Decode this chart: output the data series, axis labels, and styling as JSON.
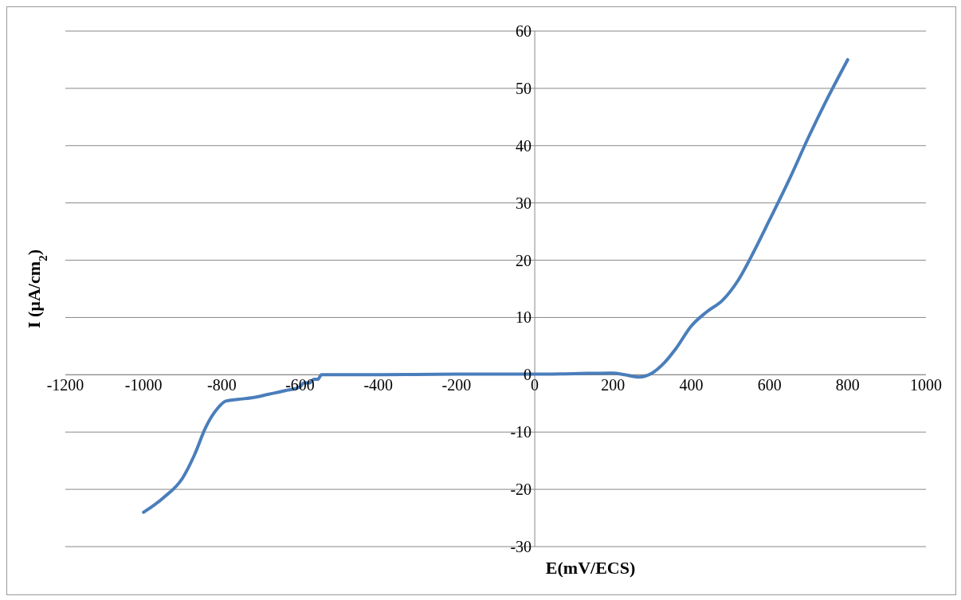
{
  "chart_data": {
    "type": "line",
    "xlabel": "E(mV/ECS)",
    "ylabel": "I (µA/cm$_{2}$)",
    "x": [
      -1000,
      -950,
      -900,
      -870,
      -840,
      -810,
      -790,
      -760,
      -720,
      -680,
      -640,
      -600,
      -590,
      -575,
      -565,
      -555,
      -545,
      -400,
      -200,
      0,
      100,
      200,
      230,
      265,
      300,
      330,
      360,
      400,
      440,
      480,
      520,
      560,
      600,
      650,
      700,
      750,
      800
    ],
    "series": [
      {
        "color": "#4a7ebb",
        "values": [
          -24,
          -21.5,
          -18,
          -14,
          -9,
          -5.8,
          -4.6,
          -4.3,
          -4,
          -3.4,
          -2.8,
          -2.1,
          -1.4,
          -1.4,
          -0.8,
          -0.8,
          0,
          0,
          0.1,
          0.1,
          0.2,
          0.3,
          0,
          -0.4,
          0.3,
          2,
          4.5,
          8.5,
          11,
          13,
          16.5,
          21.5,
          27,
          34,
          41.5,
          48.5,
          55
        ]
      }
    ],
    "xlim": [
      -1200,
      1000
    ],
    "xticks": [
      -1200,
      -1000,
      -800,
      -600,
      -400,
      -200,
      0,
      200,
      400,
      600,
      800,
      1000
    ],
    "ylim": [
      -30,
      60
    ],
    "yticks": [
      -30,
      -20,
      -10,
      0,
      10,
      20,
      30,
      40,
      50,
      60
    ],
    "grid": "y",
    "marker": "none",
    "line_style": "solid"
  }
}
